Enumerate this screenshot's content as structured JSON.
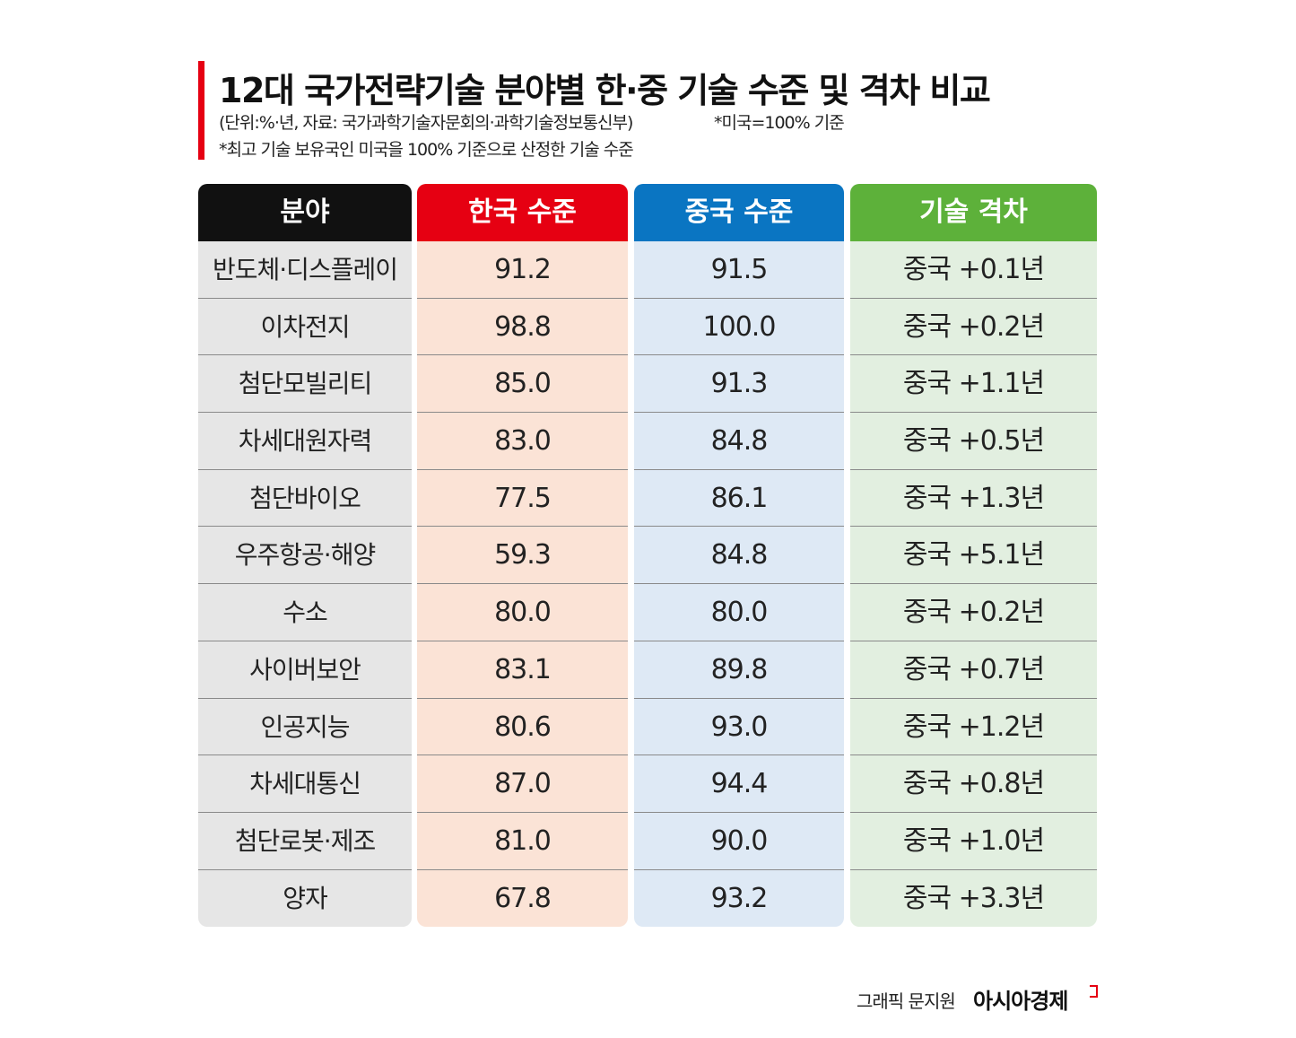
{
  "header": {
    "title": "12대 국가전략기술 분야별 한·중 기술 수준 및 격차 비교",
    "unit_note": "(단위:%·년, 자료: 국가과학기술자문회의·과학기술정보통신부)",
    "base_note": "*미국=100% 기준",
    "footnote": "*최고 기술 보유국인 미국을 100% 기준으로 산정한 기술 수준"
  },
  "table": {
    "headers": [
      "분야",
      "한국 수준",
      "중국 수준",
      "기술 격차"
    ],
    "rows": [
      [
        "반도체·디스플레이",
        "91.2",
        "91.5",
        "중국 +0.1년"
      ],
      [
        "이차전지",
        "98.8",
        "100.0",
        "중국 +0.2년"
      ],
      [
        "첨단모빌리티",
        "85.0",
        "91.3",
        "중국 +1.1년"
      ],
      [
        "차세대원자력",
        "83.0",
        "84.8",
        "중국 +0.5년"
      ],
      [
        "첨단바이오",
        "77.5",
        "86.1",
        "중국 +1.3년"
      ],
      [
        "우주항공·해양",
        "59.3",
        "84.8",
        "중국 +5.1년"
      ],
      [
        "수소",
        "80.0",
        "80.0",
        "중국 +0.2년"
      ],
      [
        "사이버보안",
        "83.1",
        "89.8",
        "중국 +0.7년"
      ],
      [
        "인공지능",
        "80.6",
        "93.0",
        "중국 +1.2년"
      ],
      [
        "차세대통신",
        "87.0",
        "94.4",
        "중국 +0.8년"
      ],
      [
        "첨단로봇·제조",
        "81.0",
        "90.0",
        "중국 +1.0년"
      ],
      [
        "양자",
        "67.8",
        "93.2",
        "중국 +3.3년"
      ]
    ]
  },
  "footer": {
    "credit": "그래픽 문지원",
    "brand": "아시아경제"
  }
}
